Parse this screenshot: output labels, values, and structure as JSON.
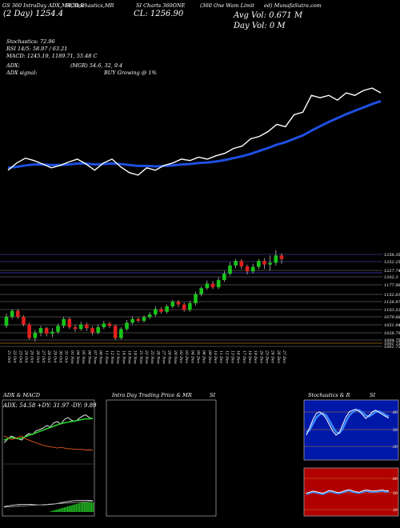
{
  "header": {
    "line1": "GS 360 IntraDay ADX,MACD,B",
    "line1b": "SI,Stochastics,MR",
    "line1c": "SI Charts 360ONE",
    "line1d": "(360 One Wam Limit",
    "line1e": "ed) MunafaSutra.com",
    "range": "(2 Day) 1254.4",
    "close": "CL: 1256.90",
    "avg_vol": "Avg Vol: 0.671 M",
    "day_vol": "Day Vol: 0   M",
    "stoch": "Stochastics: 72.96",
    "rsi": "RSI 14/5: 58.97 / 63.21",
    "macd": "MACD: 1245.19, 1189.71, 55.48  C",
    "adx": "ADX:",
    "mrsi": "(MGR) 54.6,  32,  9.4",
    "adx_signal": "ADX  signal:",
    "buy": "BUY Growing @ 1%"
  },
  "colors": {
    "price_line": "#ffffff",
    "ma_line": "#1e4fe0",
    "up": "#19c519",
    "down": "#e0201c",
    "panel_border": "#9a9a9a",
    "stoch_bg": "#0018a8",
    "rsi_bg": "#b00000"
  },
  "chart_data": [
    {
      "type": "line",
      "series": [
        {
          "values": [
            1085,
            1100,
            1110,
            1105,
            1098,
            1090,
            1095,
            1102,
            1108,
            1098,
            1085,
            1100,
            1108,
            1092,
            1080,
            1075,
            1090,
            1085,
            1095,
            1100,
            1108,
            1105,
            1112,
            1108,
            1115,
            1120,
            1130,
            1135,
            1150,
            1155,
            1165,
            1180,
            1175,
            1200,
            1205,
            1240,
            1235,
            1240,
            1230,
            1245,
            1240,
            1250,
            1255,
            1245
          ]
        },
        {
          "values": [
            1090,
            1092,
            1095,
            1097,
            1097,
            1096,
            1096,
            1097,
            1099,
            1099,
            1097,
            1098,
            1099,
            1098,
            1096,
            1094,
            1094,
            1093,
            1094,
            1095,
            1097,
            1098,
            1100,
            1101,
            1103,
            1106,
            1110,
            1114,
            1119,
            1125,
            1131,
            1138,
            1143,
            1150,
            1157,
            1167,
            1176,
            1185,
            1193,
            1201,
            1208,
            1215,
            1222,
            1228
          ]
        }
      ]
    },
    {
      "type": "candlestick",
      "price_levels": [
        "1258.35",
        "1252.25",
        "1227.74",
        "1202.3",
        "1177.96",
        "1152.61",
        "1128.97",
        "1103.53",
        "1079.88",
        "1051.94",
        "1028.79",
        "1004.75",
        "1001.73",
        "1061.73"
      ],
      "x_labels": [
        "21 Oct",
        "22 Oct",
        "23 Oct",
        "24 Oct",
        "25 Oct",
        "26 Oct",
        "27 Oct",
        "28 Oct",
        "29 Oct",
        "30 Oct",
        "31 Oct",
        "01 Nov",
        "04 Nov",
        "05 Nov",
        "06 Nov",
        "07 Nov",
        "08 Nov",
        "11 Nov",
        "12 Nov",
        "13 Nov",
        "14 Nov",
        "18 Nov",
        "19 Nov",
        "21 Nov",
        "22 Nov",
        "25 Nov",
        "26 Nov",
        "27 Nov",
        "28 Nov",
        "29 Nov",
        "02 Dec",
        "03 Dec",
        "04 Dec",
        "05 Dec",
        "06 Dec",
        "09 Dec",
        "10 Dec",
        "11 Dec",
        "12 Dec",
        "13 Dec",
        "16 Dec",
        "17 Dec",
        "18 Dec",
        "19 Dec",
        "20 Dec",
        "23 Dec",
        "24 Dec",
        "26 Dec",
        "27 Dec"
      ],
      "candles": [
        [
          1075,
          1095,
          1102,
          1070
        ],
        [
          1095,
          1108,
          1112,
          1090
        ],
        [
          1108,
          1095,
          1112,
          1090
        ],
        [
          1095,
          1078,
          1098,
          1074
        ],
        [
          1078,
          1048,
          1082,
          1045
        ],
        [
          1048,
          1060,
          1066,
          1040
        ],
        [
          1060,
          1070,
          1075,
          1052
        ],
        [
          1070,
          1058,
          1073,
          1052
        ],
        [
          1058,
          1062,
          1070,
          1050
        ],
        [
          1062,
          1075,
          1080,
          1058
        ],
        [
          1075,
          1090,
          1095,
          1070
        ],
        [
          1090,
          1072,
          1094,
          1068
        ],
        [
          1072,
          1068,
          1078,
          1062
        ],
        [
          1068,
          1078,
          1084,
          1064
        ],
        [
          1078,
          1070,
          1082,
          1064
        ],
        [
          1070,
          1060,
          1074,
          1054
        ],
        [
          1060,
          1072,
          1078,
          1056
        ],
        [
          1072,
          1080,
          1086,
          1068
        ],
        [
          1080,
          1075,
          1084,
          1070
        ],
        [
          1075,
          1048,
          1078,
          1044
        ],
        [
          1048,
          1068,
          1072,
          1045
        ],
        [
          1068,
          1082,
          1088,
          1064
        ],
        [
          1082,
          1090,
          1096,
          1078
        ],
        [
          1090,
          1086,
          1094,
          1082
        ],
        [
          1086,
          1094,
          1098,
          1082
        ],
        [
          1094,
          1100,
          1106,
          1090
        ],
        [
          1100,
          1112,
          1118,
          1096
        ],
        [
          1112,
          1106,
          1116,
          1102
        ],
        [
          1106,
          1118,
          1122,
          1102
        ],
        [
          1118,
          1128,
          1132,
          1114
        ],
        [
          1128,
          1122,
          1132,
          1116
        ],
        [
          1122,
          1110,
          1126,
          1106
        ],
        [
          1110,
          1125,
          1130,
          1106
        ],
        [
          1125,
          1145,
          1150,
          1120
        ],
        [
          1145,
          1158,
          1162,
          1140
        ],
        [
          1158,
          1168,
          1175,
          1154
        ],
        [
          1168,
          1160,
          1174,
          1156
        ],
        [
          1160,
          1176,
          1182,
          1156
        ],
        [
          1176,
          1190,
          1196,
          1172
        ],
        [
          1190,
          1208,
          1215,
          1186
        ],
        [
          1208,
          1218,
          1222,
          1202
        ],
        [
          1218,
          1206,
          1222,
          1200
        ],
        [
          1206,
          1195,
          1210,
          1188
        ],
        [
          1195,
          1205,
          1212,
          1190
        ],
        [
          1205,
          1218,
          1222,
          1200
        ],
        [
          1218,
          1210,
          1224,
          1200
        ],
        [
          1210,
          1214,
          1230,
          1196
        ],
        [
          1214,
          1230,
          1242,
          1208
        ],
        [
          1230,
          1222,
          1235,
          1212
        ]
      ]
    },
    {
      "type": "line",
      "title": "ADX  & MACD",
      "readout": "ADX: 54.58  +DY: 31.97  -DY: 9.89",
      "series": [
        {
          "values": [
            20,
            25,
            30,
            28,
            26,
            24,
            30,
            34,
            32,
            38,
            40,
            42,
            46,
            44,
            50,
            52,
            48,
            55,
            58,
            54,
            52,
            56,
            60,
            62,
            58,
            56
          ]
        },
        {
          "values": [
            24,
            26,
            28,
            27,
            26,
            27,
            29,
            31,
            33,
            35,
            37,
            39,
            41,
            43,
            45,
            47,
            49,
            50,
            51,
            52,
            53,
            54,
            55,
            56,
            56,
            57
          ]
        },
        {
          "values": [
            30,
            28,
            25,
            26,
            28,
            30,
            26,
            24,
            22,
            20,
            18,
            16,
            15,
            14,
            13,
            12,
            13,
            12,
            11,
            11,
            10,
            10,
            10,
            9,
            9,
            9
          ]
        }
      ]
    },
    {
      "type": "line",
      "title": "Intra  Day Trading Price  & MR",
      "title_right": "SI",
      "series": []
    },
    {
      "type": "line",
      "title": "Stochastics & R",
      "title_right": "SI",
      "levels": [
        "80",
        "50",
        "20"
      ],
      "series": [
        {
          "values": [
            40,
            55,
            70,
            82,
            85,
            80,
            72,
            60,
            48,
            40,
            45,
            60,
            75,
            85,
            88,
            90,
            86,
            80,
            72,
            78,
            85,
            88,
            84,
            80,
            76,
            73
          ]
        },
        {
          "values": [
            45,
            50,
            62,
            74,
            80,
            82,
            78,
            68,
            56,
            46,
            44,
            52,
            66,
            78,
            84,
            88,
            88,
            84,
            78,
            76,
            80,
            85,
            86,
            83,
            79,
            76
          ]
        }
      ]
    },
    {
      "type": "line",
      "levels": [
        "80",
        "50",
        "20"
      ],
      "series": [
        {
          "values": [
            52,
            55,
            58,
            56,
            54,
            52,
            56,
            60,
            58,
            55,
            54,
            57,
            60,
            62,
            59,
            56,
            55,
            58,
            61,
            60,
            58,
            59,
            60,
            61,
            59,
            59
          ]
        }
      ]
    }
  ]
}
